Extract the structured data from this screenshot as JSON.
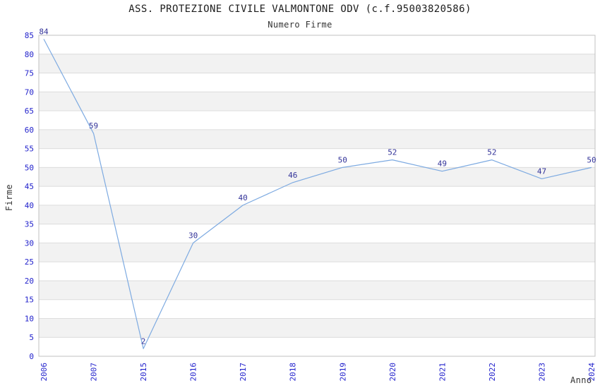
{
  "chart_data": {
    "type": "line",
    "title": "ASS. PROTEZIONE CIVILE VALMONTONE ODV (c.f.95003820586)",
    "subtitle": "Numero Firme",
    "xlabel": "Anno",
    "ylabel": "Firme",
    "categories": [
      "2006",
      "2007",
      "2015",
      "2016",
      "2017",
      "2018",
      "2019",
      "2020",
      "2021",
      "2022",
      "2023",
      "2024"
    ],
    "values": [
      84,
      59,
      2,
      30,
      40,
      46,
      50,
      52,
      49,
      52,
      47,
      50
    ],
    "ylim": [
      0,
      85
    ],
    "ytick_step": 5,
    "grid": "horizontal-gridlines-with-alternating-bands",
    "legend": "none",
    "point_labels_shown": true,
    "x_tick_rotation_degrees": -90,
    "colors": {
      "line": "#7daae1",
      "tick_labels": "#2222cc",
      "point_labels": "#333399",
      "band": "#f2f2f2",
      "grid": "#dcdcdc",
      "frame": "#c0c0c0",
      "title": "#1c1c1c",
      "axis_titles": "#333333",
      "background": "#ffffff"
    }
  }
}
